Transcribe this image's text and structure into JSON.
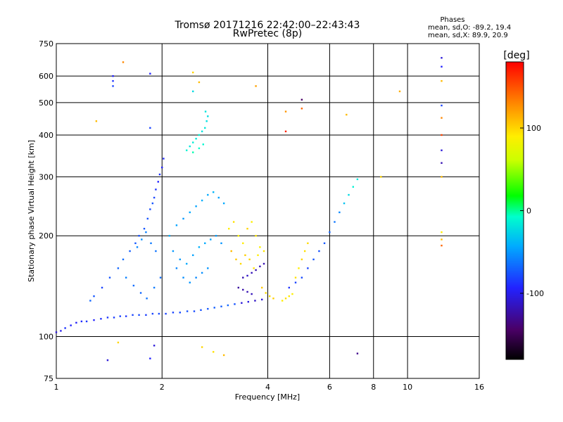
{
  "chart_data": {
    "type": "scatter",
    "title": "Tromsø 20171216 22:42:00–22:43:43",
    "subtitle": "RwPretec (8p)",
    "xlabel": "Frequency [MHz]",
    "ylabel": "Stationary phase Virtual Height [km]",
    "x_scale": "log",
    "y_scale": "log",
    "xlim": [
      1,
      16
    ],
    "ylim": [
      75,
      750
    ],
    "x_ticks": [
      1,
      2,
      4,
      6,
      8,
      10,
      16
    ],
    "y_ticks": [
      75,
      100,
      200,
      300,
      400,
      500,
      600,
      750
    ],
    "grid": true,
    "stats": {
      "heading": "Phases",
      "line_o": "mean, sd,O: -89.2, 19.4",
      "line_x": "mean, sd,X:  89.9, 20.9"
    },
    "colorbar": {
      "label": "[deg]",
      "range": [
        -180,
        180
      ],
      "ticks": [
        100,
        0,
        -100
      ]
    },
    "series": [
      {
        "points": [
          [
            1.0,
            103,
            -120
          ],
          [
            1.03,
            104,
            -115
          ],
          [
            1.06,
            106,
            -105
          ],
          [
            1.1,
            108,
            -110
          ],
          [
            1.14,
            110,
            -112
          ],
          [
            1.18,
            111,
            -108
          ],
          [
            1.22,
            111,
            -104
          ],
          [
            1.28,
            112,
            -110
          ],
          [
            1.34,
            113,
            -106
          ],
          [
            1.4,
            114,
            -104
          ],
          [
            1.46,
            114,
            -102
          ],
          [
            1.52,
            115,
            -100
          ],
          [
            1.58,
            115,
            -104
          ],
          [
            1.65,
            116,
            -100
          ],
          [
            1.72,
            116,
            -98
          ],
          [
            1.8,
            116,
            -102
          ],
          [
            1.88,
            117,
            -100
          ],
          [
            1.96,
            117,
            -98
          ],
          [
            2.05,
            117,
            -100
          ],
          [
            2.15,
            118,
            -100
          ],
          [
            2.25,
            118,
            -98
          ],
          [
            2.36,
            119,
            -96
          ],
          [
            2.47,
            119,
            -98
          ],
          [
            2.58,
            120,
            -96
          ],
          [
            2.7,
            121,
            -94
          ],
          [
            2.82,
            122,
            -92
          ],
          [
            2.95,
            123,
            -92
          ],
          [
            3.08,
            124,
            -90
          ],
          [
            3.22,
            125,
            -96
          ],
          [
            3.37,
            126,
            -120
          ],
          [
            3.52,
            127,
            -118
          ],
          [
            3.68,
            128,
            -125
          ],
          [
            3.85,
            129,
            -120
          ]
        ]
      },
      {
        "points": [
          [
            1.25,
            128,
            -90
          ],
          [
            1.28,
            132,
            -95
          ],
          [
            1.35,
            140,
            -100
          ],
          [
            1.42,
            150,
            -95
          ],
          [
            1.5,
            160,
            -90
          ],
          [
            1.55,
            170,
            -88
          ],
          [
            1.62,
            180,
            -92
          ],
          [
            1.68,
            190,
            -94
          ],
          [
            1.72,
            200,
            -96
          ],
          [
            1.78,
            210,
            -95
          ],
          [
            1.82,
            225,
            -96
          ],
          [
            1.85,
            240,
            -98
          ],
          [
            1.88,
            250,
            -95
          ],
          [
            1.9,
            260,
            -100
          ],
          [
            1.92,
            275,
            -105
          ],
          [
            1.95,
            290,
            -110
          ],
          [
            1.97,
            305,
            -105
          ],
          [
            2.0,
            320,
            -110
          ],
          [
            2.02,
            340,
            -108
          ],
          [
            1.7,
            185,
            -80
          ],
          [
            1.75,
            195,
            -78
          ],
          [
            1.8,
            205,
            -82
          ],
          [
            1.86,
            190,
            -84
          ],
          [
            1.92,
            180,
            -86
          ],
          [
            1.58,
            150,
            -82
          ],
          [
            1.66,
            142,
            -88
          ],
          [
            1.74,
            135,
            -90
          ],
          [
            1.81,
            130,
            -86
          ],
          [
            1.9,
            140,
            -84
          ],
          [
            1.98,
            150,
            -88
          ]
        ]
      },
      {
        "points": [
          [
            2.1,
            200,
            -70
          ],
          [
            2.2,
            215,
            -72
          ],
          [
            2.3,
            225,
            -75
          ],
          [
            2.4,
            235,
            -70
          ],
          [
            2.5,
            245,
            -72
          ],
          [
            2.6,
            255,
            -68
          ],
          [
            2.7,
            265,
            -70
          ],
          [
            2.8,
            270,
            -66
          ],
          [
            2.9,
            260,
            -72
          ],
          [
            3.0,
            250,
            -70
          ],
          [
            2.15,
            180,
            -75
          ],
          [
            2.25,
            170,
            -74
          ],
          [
            2.35,
            165,
            -70
          ],
          [
            2.45,
            175,
            -72
          ],
          [
            2.55,
            185,
            -68
          ],
          [
            2.65,
            190,
            -70
          ],
          [
            2.75,
            195,
            -72
          ],
          [
            2.85,
            200,
            -74
          ],
          [
            2.95,
            190,
            -76
          ],
          [
            2.2,
            160,
            -80
          ],
          [
            2.3,
            150,
            -78
          ],
          [
            2.4,
            145,
            -76
          ],
          [
            2.5,
            150,
            -80
          ],
          [
            2.6,
            155,
            -78
          ],
          [
            2.7,
            160,
            -76
          ]
        ]
      },
      {
        "points": [
          [
            2.35,
            360,
            -40
          ],
          [
            2.4,
            370,
            -45
          ],
          [
            2.45,
            380,
            -42
          ],
          [
            2.5,
            390,
            -44
          ],
          [
            2.55,
            400,
            -40
          ],
          [
            2.6,
            410,
            -46
          ],
          [
            2.65,
            420,
            -44
          ],
          [
            2.68,
            440,
            -48
          ],
          [
            2.7,
            455,
            -50
          ],
          [
            2.66,
            470,
            -46
          ],
          [
            2.45,
            355,
            -30
          ],
          [
            2.55,
            365,
            -35
          ],
          [
            2.62,
            375,
            -38
          ]
        ]
      },
      {
        "points": [
          [
            3.1,
            210,
            100
          ],
          [
            3.2,
            220,
            105
          ],
          [
            3.3,
            200,
            95
          ],
          [
            3.4,
            190,
            100
          ],
          [
            3.5,
            210,
            110
          ],
          [
            3.6,
            220,
            98
          ],
          [
            3.7,
            200,
            102
          ],
          [
            3.8,
            185,
            96
          ],
          [
            3.55,
            170,
            110
          ],
          [
            3.65,
            160,
            105
          ],
          [
            3.75,
            175,
            100
          ],
          [
            3.9,
            180,
            104
          ],
          [
            3.15,
            180,
            120
          ],
          [
            3.25,
            170,
            115
          ],
          [
            3.35,
            165,
            108
          ],
          [
            3.45,
            175,
            112
          ],
          [
            3.85,
            140,
            115
          ],
          [
            3.95,
            135,
            110
          ],
          [
            4.05,
            132,
            108
          ],
          [
            4.15,
            130,
            112
          ]
        ]
      },
      {
        "points": [
          [
            4.4,
            128,
            100
          ],
          [
            4.5,
            130,
            105
          ],
          [
            4.6,
            132,
            102
          ],
          [
            4.7,
            134,
            98
          ],
          [
            4.8,
            150,
            105
          ],
          [
            4.9,
            160,
            100
          ],
          [
            5.0,
            170,
            110
          ],
          [
            5.1,
            180,
            105
          ],
          [
            5.2,
            190,
            108
          ]
        ]
      },
      {
        "points": [
          [
            3.4,
            150,
            -130
          ],
          [
            3.5,
            152,
            -125
          ],
          [
            3.6,
            155,
            -128
          ],
          [
            3.7,
            158,
            -132
          ],
          [
            3.8,
            162,
            -128
          ],
          [
            3.9,
            165,
            -130
          ],
          [
            3.3,
            140,
            -135
          ],
          [
            3.4,
            138,
            -132
          ],
          [
            3.5,
            136,
            -130
          ],
          [
            3.6,
            134,
            -128
          ]
        ]
      },
      {
        "points": [
          [
            4.6,
            140,
            -105
          ],
          [
            4.8,
            145,
            -100
          ],
          [
            5.0,
            150,
            -98
          ],
          [
            5.2,
            160,
            -100
          ],
          [
            5.4,
            170,
            -95
          ],
          [
            5.6,
            180,
            -96
          ],
          [
            5.8,
            190,
            -94
          ],
          [
            6.0,
            205,
            -90
          ],
          [
            6.2,
            220,
            -85
          ],
          [
            6.4,
            235,
            -80
          ],
          [
            6.6,
            250,
            -60
          ],
          [
            6.8,
            265,
            -50
          ],
          [
            7.0,
            280,
            -40
          ],
          [
            7.2,
            295,
            -45
          ]
        ]
      },
      {
        "points": [
          [
            1.45,
            560,
            -100
          ],
          [
            1.45,
            580,
            -105
          ],
          [
            1.45,
            600,
            -110
          ],
          [
            1.85,
            610,
            -110
          ],
          [
            1.85,
            420,
            -100
          ],
          [
            2.45,
            615,
            110
          ],
          [
            2.45,
            540,
            -50
          ],
          [
            2.55,
            575,
            120
          ],
          [
            1.3,
            440,
            120
          ],
          [
            1.55,
            660,
            140
          ],
          [
            3.7,
            560,
            130
          ],
          [
            5.0,
            510,
            -150
          ],
          [
            5.0,
            480,
            150
          ],
          [
            4.5,
            470,
            135
          ],
          [
            4.5,
            410,
            170
          ],
          [
            6.7,
            460,
            120
          ],
          [
            9.5,
            540,
            125
          ],
          [
            12.5,
            680,
            -120
          ],
          [
            12.5,
            640,
            -110
          ],
          [
            12.5,
            580,
            120
          ],
          [
            12.5,
            490,
            -100
          ],
          [
            12.5,
            450,
            140
          ],
          [
            12.5,
            400,
            160
          ],
          [
            12.5,
            360,
            -120
          ],
          [
            12.5,
            330,
            -130
          ],
          [
            12.5,
            300,
            120
          ],
          [
            12.5,
            205,
            100
          ],
          [
            12.5,
            195,
            120
          ],
          [
            12.5,
            187,
            150
          ],
          [
            8.4,
            300,
            110
          ],
          [
            7.2,
            89,
            -140
          ],
          [
            2.6,
            93,
            110
          ],
          [
            2.8,
            90,
            105
          ],
          [
            3.0,
            88,
            120
          ],
          [
            1.9,
            94,
            -120
          ],
          [
            1.85,
            86,
            -110
          ],
          [
            1.4,
            85,
            -120
          ],
          [
            1.5,
            96,
            110
          ]
        ]
      }
    ]
  }
}
